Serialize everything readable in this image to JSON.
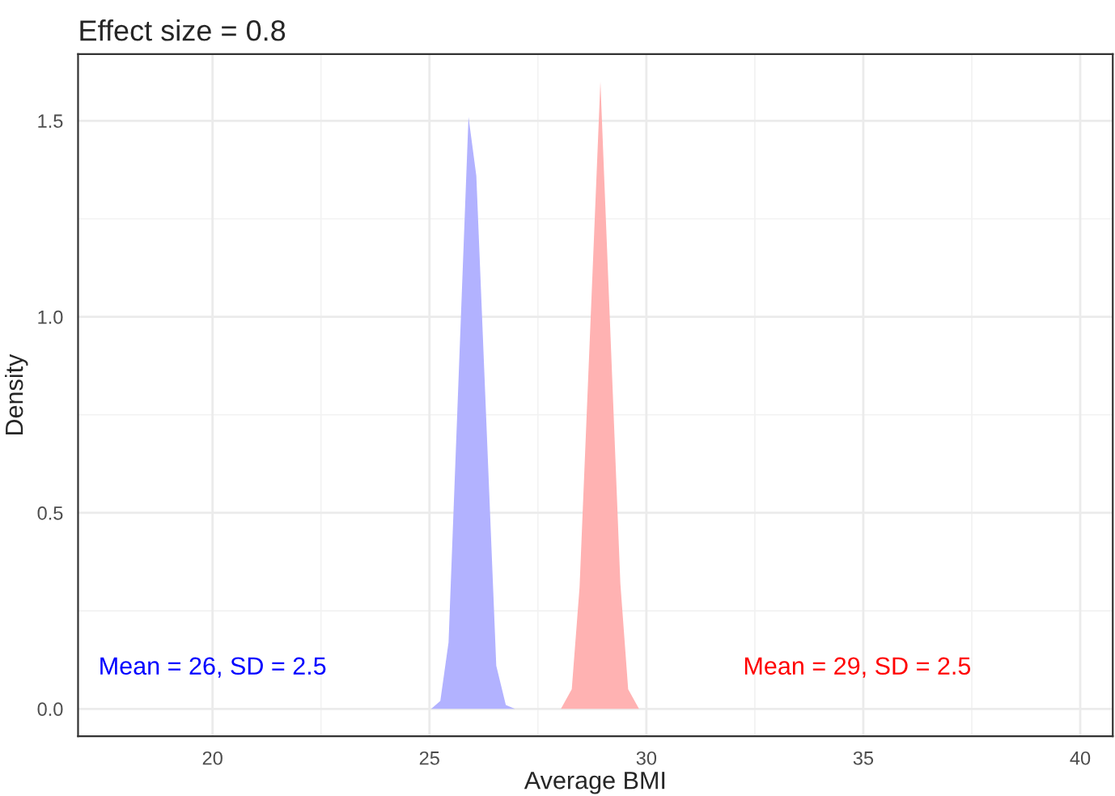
{
  "chart_data": {
    "type": "area",
    "title": "Effect size = 0.8",
    "xlabel": "Average BMI",
    "ylabel": "Density",
    "series": [
      {
        "color": "#b2b2ff",
        "x": [
          25.04,
          25.25,
          25.44,
          25.9,
          26.08,
          26.54,
          26.76,
          26.97
        ],
        "values": [
          0,
          0.02,
          0.17,
          1.51,
          1.36,
          0.11,
          0.01,
          0
        ]
      },
      {
        "color": "#ffb2b2",
        "x": [
          28.03,
          28.28,
          28.46,
          28.94,
          29.4,
          29.58,
          29.83
        ],
        "values": [
          0,
          0.05,
          0.31,
          1.6,
          0.32,
          0.05,
          0
        ]
      }
    ],
    "annotations": [
      "Mean = 26, SD = 2.5",
      "Mean = 29, SD = 2.5"
    ],
    "xlim": [
      16.9,
      40.75
    ],
    "ylim": [
      -0.07,
      1.67
    ],
    "xticks": [
      20,
      25,
      30,
      35,
      40
    ],
    "yticks": [
      {
        "value": 0,
        "label": "0.0"
      },
      {
        "value": 0.5,
        "label": "0.5"
      },
      {
        "value": 1.0,
        "label": "1.0"
      },
      {
        "value": 1.5,
        "label": "1.5"
      }
    ],
    "grid": true
  }
}
